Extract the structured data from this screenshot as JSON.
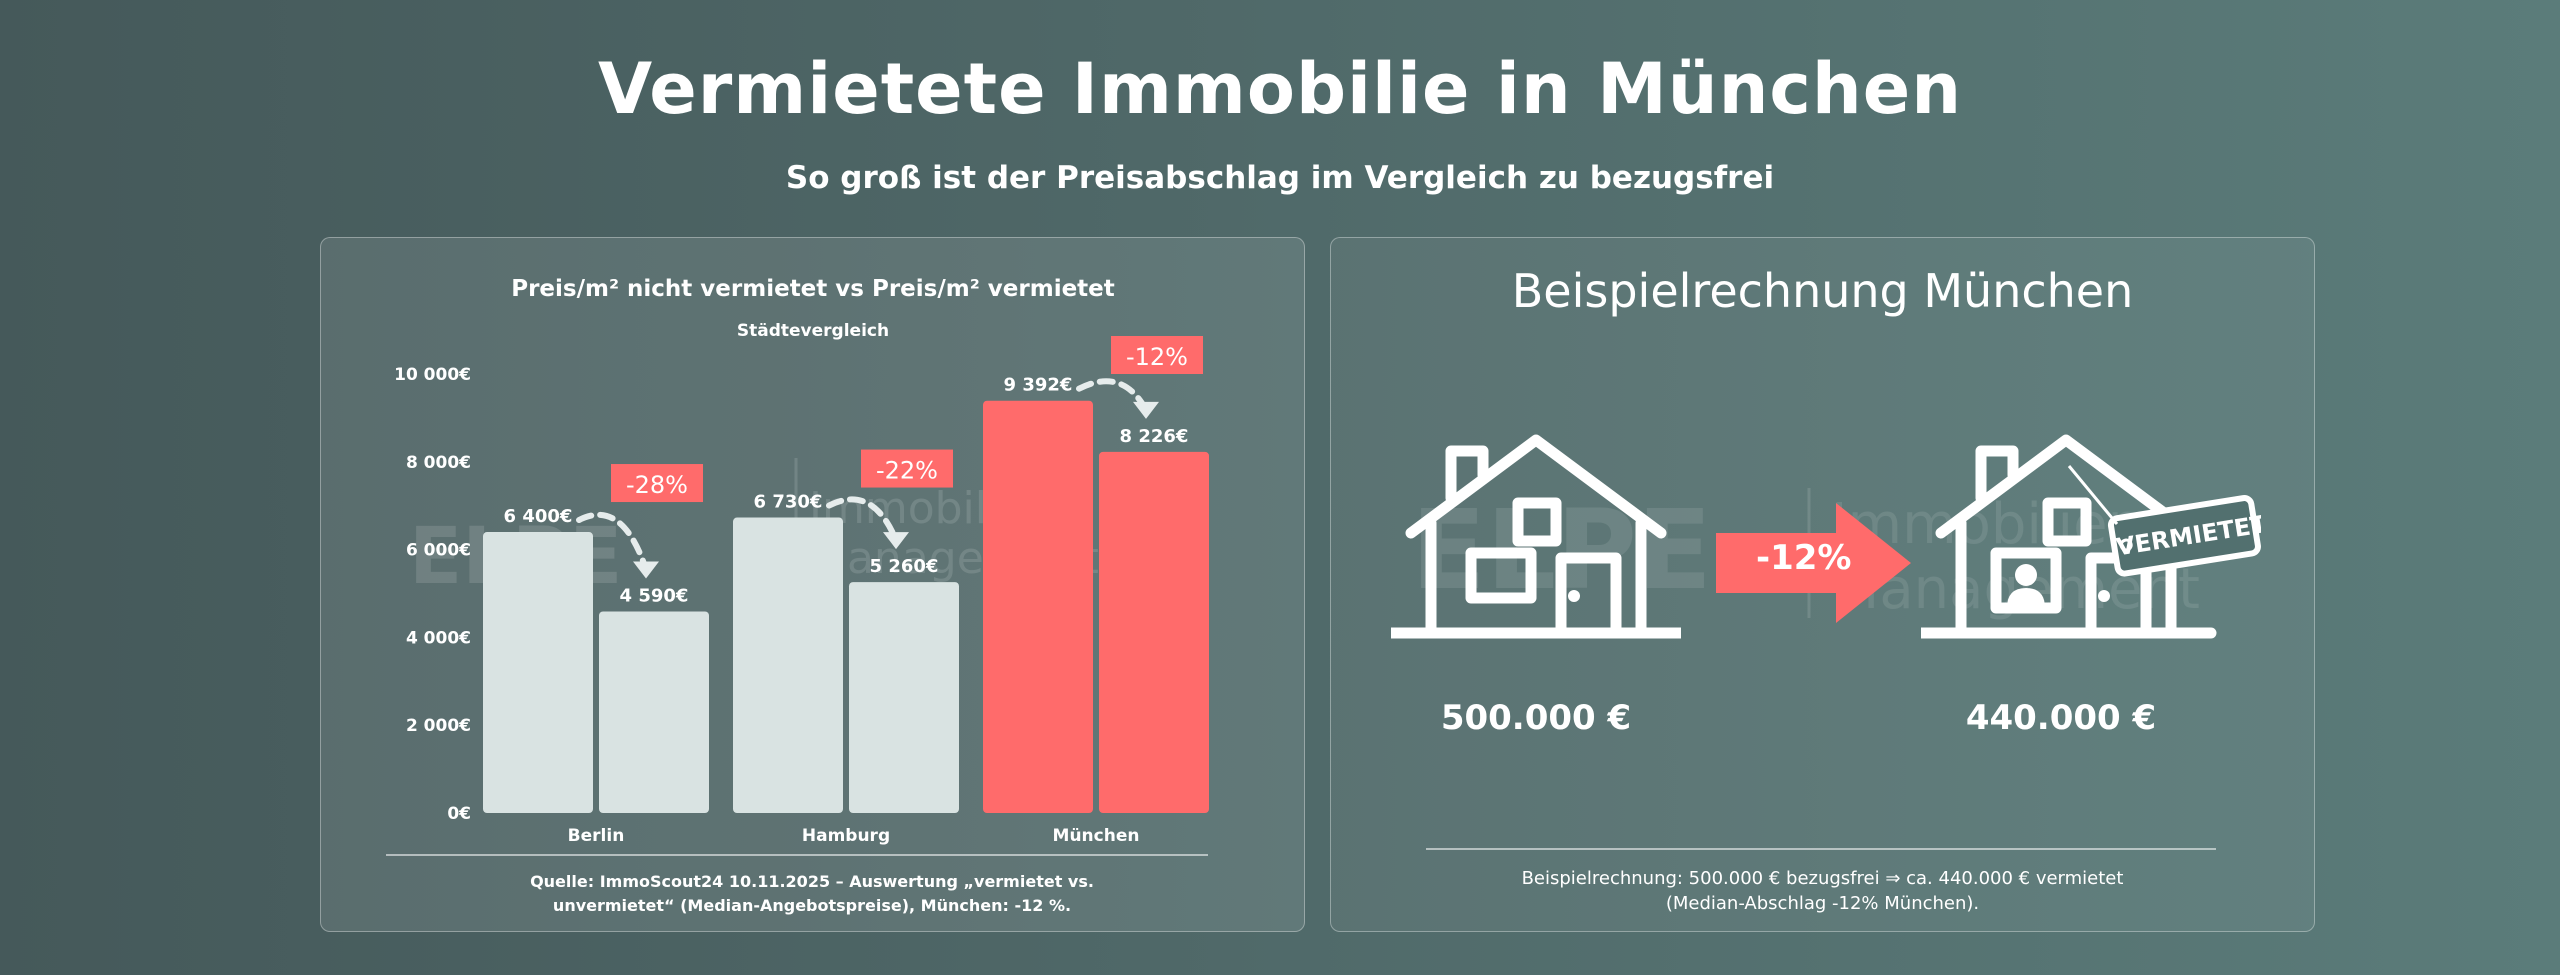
{
  "header": {
    "title": "Vermietete Immobilie in München",
    "subtitle": "So groß ist der Preisabschlag im Vergleich zu bezugsfrei"
  },
  "colors": {
    "light_bar": "#d9e3e2",
    "accent": "#ff6b6b"
  },
  "chart_data": {
    "type": "bar",
    "title": "Preis/m² nicht vermietet vs Preis/m² vermietet",
    "subtitle": "Städtevergleich",
    "categories": [
      "Berlin",
      "Hamburg",
      "München"
    ],
    "series": [
      {
        "values": [
          6400,
          6730,
          9392
        ],
        "labels": [
          "6 400€",
          "6 730€",
          "9 392€"
        ]
      },
      {
        "values": [
          4590,
          5260,
          8226
        ],
        "labels": [
          "4 590€",
          "5 260€",
          "8 226€"
        ]
      }
    ],
    "discounts": [
      "-28%",
      "-22%",
      "-12%"
    ],
    "highlight": "München",
    "ylim": [
      0,
      10000
    ],
    "yticks": [
      "0€",
      "2 000€",
      "4 000€",
      "6 000€",
      "8 000€",
      "10 000€"
    ],
    "grid": false,
    "source": "Quelle: ImmoScout24 10.11.2025 – Auswertung „vermietet vs. unvermietet“ (Median-Angebotspreise), München: -12 %.",
    "source_lines": [
      "Quelle: ImmoScout24 10.11.2025 – Auswertung „vermietet vs.",
      "unvermietet“ (Median-Angebotspreise), München: -12 %."
    ]
  },
  "example": {
    "title": "Beispielrechnung München",
    "before_price": "500.000 €",
    "after_price": "440.000 €",
    "discount": "-12%",
    "sign": "VERMIETET",
    "note_lines": [
      "Beispielrechnung: 500.000 € bezugsfrei ⇒ ca. 440.000 € vermietet",
      "(Median-Abschlag -12% München)."
    ]
  },
  "watermark": {
    "logo": "ELPE",
    "line1": "Immobilien",
    "line2": "Management"
  }
}
